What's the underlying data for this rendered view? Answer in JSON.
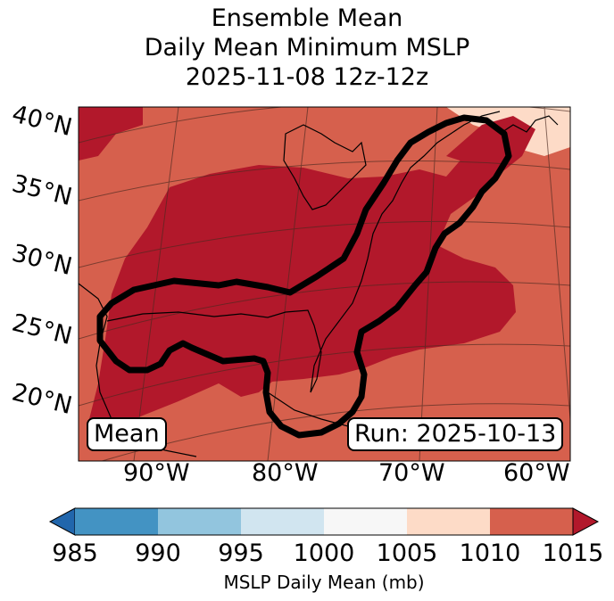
{
  "title": {
    "line1": "Ensemble Mean",
    "line2": "Daily Mean Minimum MSLP",
    "line3": "2025-11-08 12z-12z"
  },
  "map": {
    "lat_labels": [
      "40°N",
      "35°N",
      "30°N",
      "25°N",
      "20°N"
    ],
    "lon_labels": [
      "90°W",
      "80°W",
      "70°W",
      "60°W"
    ],
    "legend_box": "Mean",
    "run_box": "Run: 2025-10-13",
    "colors": {
      "ocean_land_1010_1015": "#d6604d",
      "low_1005_1010": "#fddbc7",
      "high_above_1015": "#b2182b",
      "contour": "#000000"
    }
  },
  "colorbar": {
    "ticks": [
      "985",
      "990",
      "995",
      "1000",
      "1005",
      "1010",
      "1015"
    ],
    "label": "MSLP Daily Mean (mb)",
    "colors": [
      "#2166ac",
      "#4393c3",
      "#92c5de",
      "#d1e5f0",
      "#f7f7f7",
      "#fddbc7",
      "#d6604d",
      "#b2182b"
    ]
  }
}
